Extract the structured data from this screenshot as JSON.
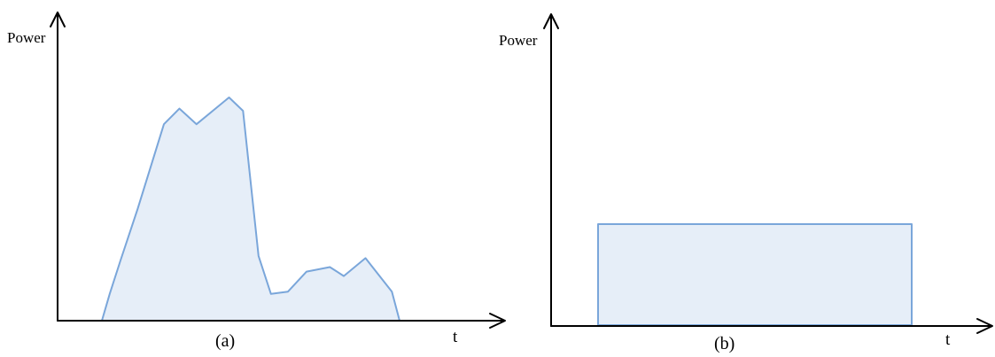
{
  "colors": {
    "axis": "#000000",
    "area_stroke": "#7aa6da",
    "area_fill": "#e6eef8"
  },
  "panels": [
    {
      "id": "a",
      "ylabel": "Power",
      "xlabel": "t",
      "caption": "(a)",
      "profile": "variable",
      "power_profile": [
        {
          "t": 0.0,
          "p": 0.0
        },
        {
          "t": 0.025,
          "p": 0.12
        },
        {
          "t": 0.06,
          "p": 0.27
        },
        {
          "t": 0.115,
          "p": 0.5
        },
        {
          "t": 0.2,
          "p": 0.88
        },
        {
          "t": 0.25,
          "p": 0.95
        },
        {
          "t": 0.305,
          "p": 0.88
        },
        {
          "t": 0.41,
          "p": 1.0
        },
        {
          "t": 0.455,
          "p": 0.94
        },
        {
          "t": 0.505,
          "p": 0.29
        },
        {
          "t": 0.545,
          "p": 0.12
        },
        {
          "t": 0.6,
          "p": 0.13
        },
        {
          "t": 0.66,
          "p": 0.22
        },
        {
          "t": 0.735,
          "p": 0.24
        },
        {
          "t": 0.78,
          "p": 0.2
        },
        {
          "t": 0.85,
          "p": 0.28
        },
        {
          "t": 0.935,
          "p": 0.13
        },
        {
          "t": 0.96,
          "p": 0.0
        }
      ]
    },
    {
      "id": "b",
      "ylabel": "Power",
      "xlabel": "t",
      "caption": "(b)",
      "profile": "constant",
      "power_profile": [
        {
          "t": 0.0,
          "p": 0.0
        },
        {
          "t": 0.0,
          "p": 1.0
        },
        {
          "t": 1.0,
          "p": 1.0
        },
        {
          "t": 1.0,
          "p": 0.0
        }
      ]
    }
  ]
}
